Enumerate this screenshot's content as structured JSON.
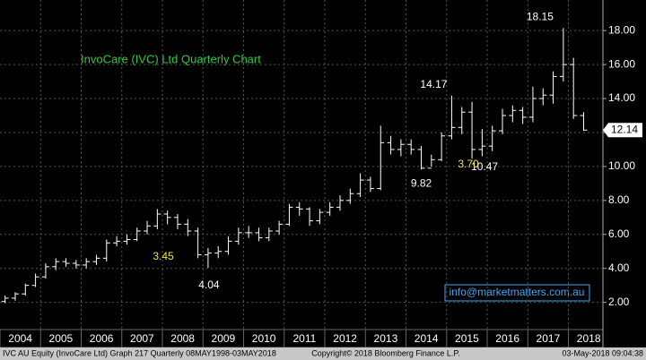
{
  "chart_data": {
    "type": "ohlc",
    "title": "InvoCare (IVC) Ltd Quarterly Chart",
    "x": [
      2004.125,
      2004.375,
      2004.625,
      2004.875,
      2005.125,
      2005.375,
      2005.625,
      2005.875,
      2006.125,
      2006.375,
      2006.625,
      2006.875,
      2007.125,
      2007.375,
      2007.625,
      2007.875,
      2008.125,
      2008.375,
      2008.625,
      2008.875,
      2009.125,
      2009.375,
      2009.625,
      2009.875,
      2010.125,
      2010.375,
      2010.625,
      2010.875,
      2011.125,
      2011.375,
      2011.625,
      2011.875,
      2012.125,
      2012.375,
      2012.625,
      2012.875,
      2013.125,
      2013.375,
      2013.625,
      2013.875,
      2014.125,
      2014.375,
      2014.625,
      2014.875,
      2015.125,
      2015.375,
      2015.625,
      2015.875,
      2016.125,
      2016.375,
      2016.625,
      2016.875,
      2017.125,
      2017.375,
      2017.625,
      2017.875,
      2018.125,
      2018.375
    ],
    "open": [
      2.05,
      2.25,
      2.5,
      3.0,
      3.5,
      4.1,
      4.4,
      4.3,
      4.2,
      4.4,
      4.6,
      5.5,
      5.6,
      5.7,
      6.2,
      6.5,
      7.2,
      7.0,
      6.6,
      6.2,
      4.8,
      4.9,
      5.0,
      5.6,
      6.1,
      6.1,
      5.8,
      6.2,
      6.6,
      7.6,
      7.5,
      6.8,
      7.3,
      7.6,
      8.0,
      8.4,
      9.2,
      8.7,
      11.4,
      11.0,
      11.3,
      11.0,
      9.9,
      10.4,
      11.8,
      12.3,
      13.2,
      11.0,
      11.2,
      12.1,
      13.0,
      13.3,
      12.9,
      14.0,
      14.2,
      15.3,
      16.0,
      13.0
    ],
    "high": [
      2.4,
      2.6,
      3.1,
      3.7,
      4.3,
      4.6,
      4.6,
      4.5,
      4.6,
      4.8,
      5.7,
      5.9,
      6.0,
      6.4,
      6.8,
      7.5,
      7.4,
      7.2,
      6.9,
      6.4,
      5.2,
      5.3,
      5.9,
      6.4,
      6.5,
      6.4,
      6.4,
      6.8,
      7.8,
      7.9,
      7.6,
      7.5,
      7.9,
      8.3,
      8.7,
      9.6,
      9.4,
      12.4,
      11.8,
      11.6,
      11.6,
      11.2,
      10.7,
      12.0,
      14.17,
      13.5,
      13.8,
      12.2,
      12.4,
      13.4,
      13.6,
      13.5,
      14.7,
      14.6,
      15.6,
      18.15,
      16.4,
      13.2
    ],
    "low": [
      1.95,
      2.1,
      2.4,
      2.9,
      3.4,
      3.9,
      4.1,
      4.0,
      4.0,
      4.2,
      4.4,
      5.3,
      5.4,
      5.6,
      6.0,
      6.3,
      6.6,
      6.3,
      5.9,
      4.6,
      4.04,
      4.6,
      4.8,
      5.4,
      5.8,
      5.6,
      5.6,
      6.0,
      6.5,
      7.1,
      6.5,
      6.6,
      7.1,
      7.4,
      7.8,
      8.2,
      8.5,
      8.6,
      10.7,
      10.6,
      10.7,
      9.82,
      10.0,
      10.3,
      11.6,
      11.9,
      10.47,
      10.6,
      10.9,
      11.9,
      12.6,
      12.5,
      12.6,
      13.6,
      13.7,
      15.0,
      12.8,
      12.1
    ],
    "close": [
      2.25,
      2.5,
      3.0,
      3.5,
      4.1,
      4.4,
      4.3,
      4.2,
      4.4,
      4.6,
      5.5,
      5.6,
      5.7,
      6.2,
      6.5,
      7.2,
      7.0,
      6.6,
      6.2,
      4.8,
      4.9,
      5.0,
      5.6,
      6.1,
      6.1,
      5.8,
      6.2,
      6.6,
      7.6,
      7.5,
      6.8,
      7.3,
      7.6,
      8.0,
      8.4,
      9.2,
      8.7,
      11.4,
      11.0,
      11.3,
      11.0,
      9.9,
      10.4,
      11.8,
      12.3,
      13.2,
      11.0,
      11.2,
      12.1,
      13.0,
      13.3,
      12.9,
      14.0,
      14.2,
      15.3,
      16.0,
      13.0,
      12.14
    ],
    "color": "#ffffff",
    "xlim": [
      2004,
      2018.85
    ],
    "xticks": [
      2004,
      2005,
      2006,
      2007,
      2008,
      2009,
      2010,
      2011,
      2012,
      2013,
      2014,
      2015,
      2016,
      2017,
      2018
    ],
    "ylim": [
      0.4,
      19.8
    ],
    "yticks": [
      {
        "value": 2,
        "label": "2.00"
      },
      {
        "value": 4,
        "label": "4.00"
      },
      {
        "value": 6,
        "label": "6.00"
      },
      {
        "value": 8,
        "label": "8.00"
      },
      {
        "value": 10,
        "label": "10.00"
      },
      {
        "value": 12,
        "label": "12.00"
      },
      {
        "value": 14,
        "label": "14.00"
      },
      {
        "value": 16,
        "label": "16.00"
      },
      {
        "value": 18,
        "label": "18.00"
      }
    ],
    "grid": true,
    "annotations": [
      "3.45",
      "3.70"
    ],
    "watermark": "info@marketmatters.com.au",
    "footer": {
      "left": "IVC AU Equity (InvoCare Ltd) Graph 217  Quarterly 08MAY1998-03MAY2018",
      "center": "Copyright© 2018 Bloomberg Finance L.P.",
      "right": "03-May-2018 09:04:38"
    }
  }
}
